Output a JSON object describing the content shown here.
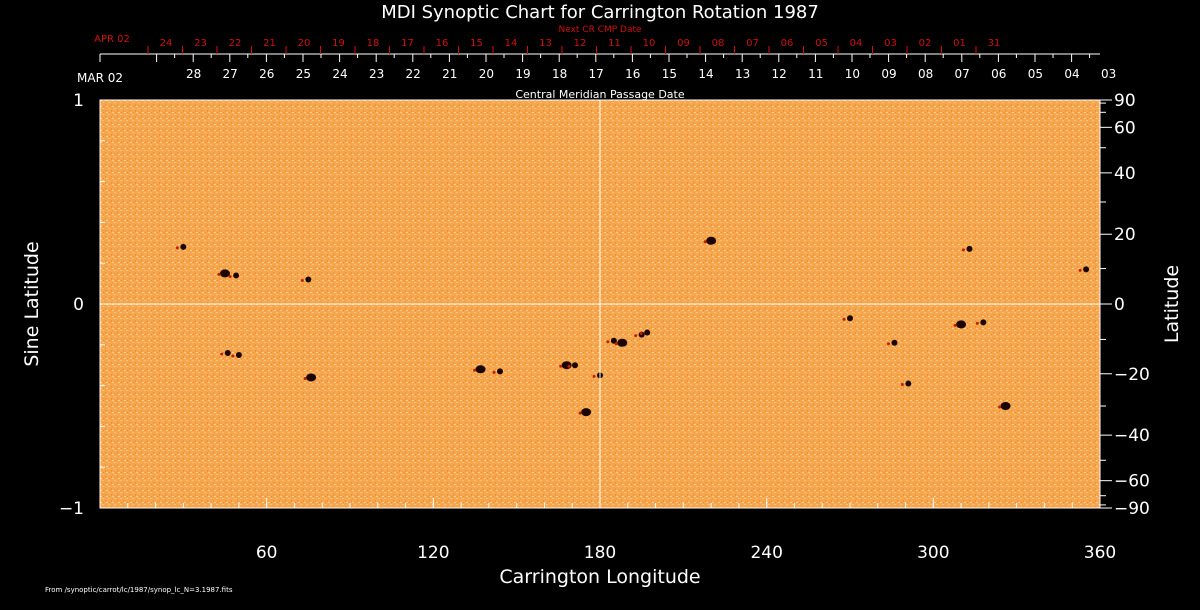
{
  "chart_data": {
    "type": "heatmap",
    "title": "MDI Synoptic Chart for Carrington Rotation 1987",
    "xlabel": "Carrington Longitude",
    "ylabel_left": "Sine Latitude",
    "ylabel_right": "Latitude",
    "xlim": [
      0,
      360
    ],
    "ylim": [
      -1,
      1
    ],
    "x_ticks": [
      60,
      120,
      180,
      240,
      300,
      360
    ],
    "y_ticks_left": [
      {
        "v": 1,
        "label": "1"
      },
      {
        "v": 0,
        "label": "0"
      },
      {
        "v": -1,
        "label": "−1"
      }
    ],
    "y_ticks_right": [
      90,
      60,
      40,
      20,
      0,
      -20,
      -40,
      -60,
      -90
    ],
    "top_axis_label": "Central Meridian Passage Date",
    "top_axis_start_label": "MAR 02",
    "top_axis_dates": [
      "28",
      "27",
      "26",
      "25",
      "24",
      "23",
      "22",
      "21",
      "20",
      "19",
      "18",
      "17",
      "16",
      "15",
      "14",
      "13",
      "12",
      "11",
      "10",
      "09",
      "08",
      "07",
      "06",
      "05",
      "04",
      "03"
    ],
    "next_axis_label": "Next CR CMP Date",
    "next_axis_start_label": "APR 02",
    "next_axis_dates": [
      "24",
      "23",
      "22",
      "21",
      "20",
      "19",
      "18",
      "17",
      "16",
      "15",
      "14",
      "13",
      "12",
      "11",
      "10",
      "09",
      "08",
      "07",
      "06",
      "05",
      "04",
      "03",
      "02",
      "01",
      "31"
    ],
    "footer": "From /synoptic/carrot/lc/1987/synop_lc_N=3.1987.fits",
    "colors": {
      "background": "#f6a64c",
      "spot": "#1a0500",
      "next_axis": "#d01010"
    },
    "features": [
      {
        "lon": 45,
        "sinlat": 0.15
      },
      {
        "lon": 49,
        "sinlat": 0.14
      },
      {
        "lon": 75,
        "sinlat": 0.12
      },
      {
        "lon": 220,
        "sinlat": 0.31
      },
      {
        "lon": 270,
        "sinlat": -0.07
      },
      {
        "lon": 185,
        "sinlat": -0.18
      },
      {
        "lon": 188,
        "sinlat": -0.19
      },
      {
        "lon": 195,
        "sinlat": -0.15
      },
      {
        "lon": 197,
        "sinlat": -0.14
      },
      {
        "lon": 137,
        "sinlat": -0.32
      },
      {
        "lon": 144,
        "sinlat": -0.33
      },
      {
        "lon": 180,
        "sinlat": -0.35
      },
      {
        "lon": 76,
        "sinlat": -0.36
      },
      {
        "lon": 50,
        "sinlat": -0.25
      },
      {
        "lon": 46,
        "sinlat": -0.24
      },
      {
        "lon": 168,
        "sinlat": -0.3
      },
      {
        "lon": 171,
        "sinlat": -0.3
      },
      {
        "lon": 318,
        "sinlat": -0.09
      },
      {
        "lon": 310,
        "sinlat": -0.1
      },
      {
        "lon": 286,
        "sinlat": -0.19
      },
      {
        "lon": 291,
        "sinlat": -0.39
      },
      {
        "lon": 326,
        "sinlat": -0.5
      },
      {
        "lon": 355,
        "sinlat": 0.17
      },
      {
        "lon": 313,
        "sinlat": 0.27
      },
      {
        "lon": 175,
        "sinlat": -0.53
      },
      {
        "lon": 30,
        "sinlat": 0.28
      }
    ]
  }
}
